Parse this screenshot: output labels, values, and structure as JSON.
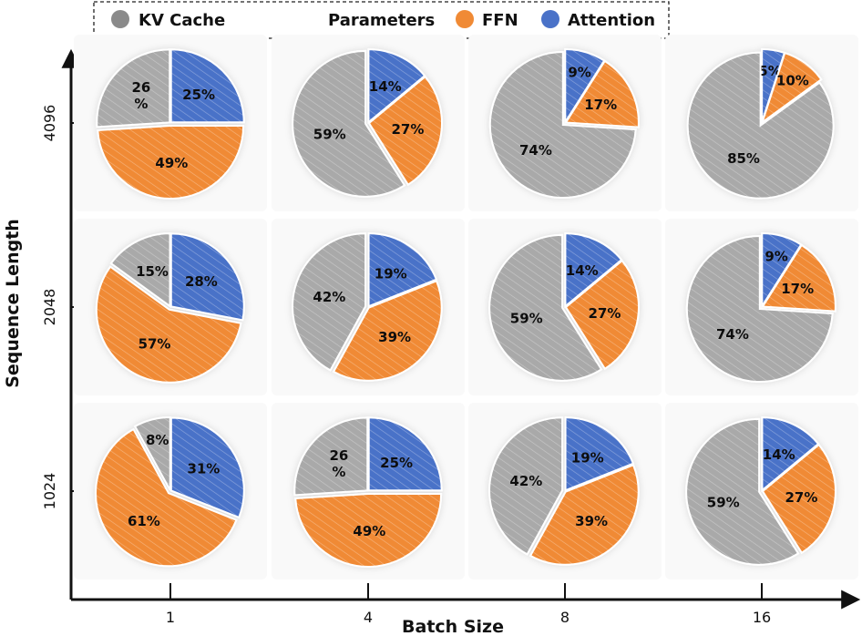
{
  "chart_data": {
    "type": "pie",
    "title": "",
    "xlabel": "Batch Size",
    "ylabel": "Sequence Length",
    "x_ticks": [
      "1",
      "4",
      "8",
      "16"
    ],
    "y_ticks": [
      "4096",
      "2048",
      "1024"
    ],
    "legend": [
      {
        "name": "KV Cache",
        "color": "#a9a9a9"
      },
      {
        "name": "Parameters",
        "color": ""
      },
      {
        "name": "FFN",
        "color": "#f08a35"
      },
      {
        "name": "Attention",
        "color": "#4a72c8"
      }
    ],
    "categories": [
      "Attention",
      "FFN",
      "KV Cache"
    ],
    "colors": {
      "Attention": "#4a72c8",
      "FFN": "#f08a35",
      "KV Cache": "#a9a9a9"
    },
    "grid": [
      {
        "seq_len": "4096",
        "batch": "1",
        "values": [
          25,
          49,
          26
        ],
        "labels": [
          "25%",
          "49%",
          "26\n%"
        ]
      },
      {
        "seq_len": "4096",
        "batch": "4",
        "values": [
          14,
          27,
          59
        ],
        "labels": [
          "14%",
          "27%",
          "59%"
        ]
      },
      {
        "seq_len": "4096",
        "batch": "8",
        "values": [
          9,
          17,
          74
        ],
        "labels": [
          "9%",
          "17%",
          "74%"
        ]
      },
      {
        "seq_len": "4096",
        "batch": "16",
        "values": [
          5,
          10,
          85
        ],
        "labels": [
          "5%",
          "10%",
          "85%"
        ]
      },
      {
        "seq_len": "2048",
        "batch": "1",
        "values": [
          28,
          57,
          15
        ],
        "labels": [
          "28%",
          "57%",
          "15%"
        ]
      },
      {
        "seq_len": "2048",
        "batch": "4",
        "values": [
          19,
          39,
          42
        ],
        "labels": [
          "19%",
          "39%",
          "42%"
        ]
      },
      {
        "seq_len": "2048",
        "batch": "8",
        "values": [
          14,
          27,
          59
        ],
        "labels": [
          "14%",
          "27%",
          "59%"
        ]
      },
      {
        "seq_len": "2048",
        "batch": "16",
        "values": [
          9,
          17,
          74
        ],
        "labels": [
          "9%",
          "17%",
          "74%"
        ]
      },
      {
        "seq_len": "1024",
        "batch": "1",
        "values": [
          31,
          61,
          8
        ],
        "labels": [
          "31%",
          "61%",
          "8%"
        ]
      },
      {
        "seq_len": "1024",
        "batch": "4",
        "values": [
          25,
          49,
          26
        ],
        "labels": [
          "25%",
          "49%",
          "26\n%"
        ]
      },
      {
        "seq_len": "1024",
        "batch": "8",
        "values": [
          19,
          39,
          42
        ],
        "labels": [
          "19%",
          "39%",
          "42%"
        ]
      },
      {
        "seq_len": "1024",
        "batch": "16",
        "values": [
          14,
          27,
          59
        ],
        "labels": [
          "14%",
          "27%",
          "59%"
        ]
      }
    ]
  }
}
